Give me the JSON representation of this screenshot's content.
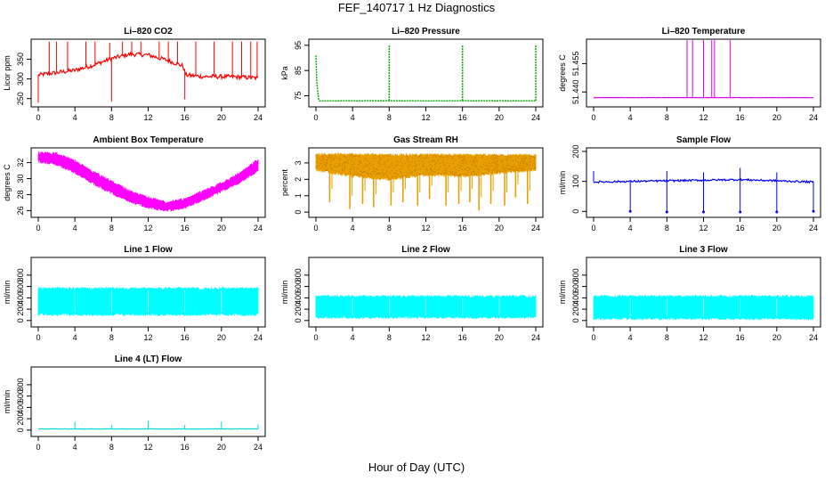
{
  "figure": {
    "title": "FEF_140717  1 Hz Diagnostics",
    "xlabel": "Hour of Day (UTC)"
  },
  "chart_data": [
    {
      "type": "line",
      "title": "Li–820 CO2",
      "ylabel": "Licor ppm",
      "color": "#ff0000",
      "xlim": [
        0,
        24
      ],
      "ylim": [
        238,
        392
      ],
      "yticks": [
        250,
        300,
        350
      ],
      "xticks": [
        0,
        4,
        8,
        12,
        16,
        20,
        24
      ],
      "baseline": [
        [
          0,
          310
        ],
        [
          2,
          316
        ],
        [
          4,
          322
        ],
        [
          6,
          335
        ],
        [
          8,
          352
        ],
        [
          10,
          363
        ],
        [
          12,
          361
        ],
        [
          14,
          348
        ],
        [
          15.8,
          333
        ],
        [
          16.1,
          310
        ],
        [
          18,
          306
        ],
        [
          20,
          306
        ],
        [
          22,
          305
        ],
        [
          24,
          302
        ]
      ],
      "spikes": [
        [
          0,
          240
        ],
        [
          1.2,
          395
        ],
        [
          2,
          395
        ],
        [
          3.2,
          395
        ],
        [
          5.2,
          395
        ],
        [
          6.2,
          395
        ],
        [
          7.8,
          392
        ],
        [
          8,
          242
        ],
        [
          9.2,
          395
        ],
        [
          10.2,
          395
        ],
        [
          11.2,
          395
        ],
        [
          13.2,
          395
        ],
        [
          14.2,
          395
        ],
        [
          15.2,
          395
        ],
        [
          16,
          248
        ],
        [
          17.2,
          395
        ],
        [
          19.2,
          395
        ],
        [
          21.2,
          395
        ],
        [
          22.2,
          395
        ],
        [
          23.2,
          395
        ],
        [
          23.9,
          395
        ]
      ]
    },
    {
      "type": "line",
      "title": "Li–820 Pressure",
      "ylabel": "kPa",
      "color": "#00aa00",
      "xlim": [
        0,
        24
      ],
      "ylim": [
        72,
        96
      ],
      "yticks": [
        75,
        85,
        95
      ],
      "xticks": [
        0,
        4,
        8,
        12,
        16,
        20,
        24
      ],
      "baseline": [
        [
          0,
          91
        ],
        [
          0.1,
          80
        ],
        [
          0.3,
          73
        ],
        [
          24,
          73
        ]
      ],
      "spikes": [
        [
          8,
          95
        ],
        [
          16,
          95
        ],
        [
          24,
          95
        ]
      ]
    },
    {
      "type": "line",
      "title": "Li–820 Temperature",
      "ylabel": "degrees C",
      "color": "#dd00dd",
      "xlim": [
        0,
        24
      ],
      "ylim": [
        51.434,
        51.466
      ],
      "yticks": [
        51.44,
        51.455
      ],
      "ytick_labels": [
        "51.440",
        "51.455"
      ],
      "xticks": [
        0,
        4,
        8,
        12,
        16,
        20,
        24
      ],
      "baseline": [
        [
          0,
          51.437
        ],
        [
          24,
          51.437
        ]
      ],
      "spikes": [
        [
          10.2,
          51.47
        ],
        [
          10.8,
          51.47
        ],
        [
          12,
          51.47
        ],
        [
          12.9,
          51.47
        ],
        [
          13.2,
          51.47
        ],
        [
          14.9,
          51.47
        ]
      ]
    },
    {
      "type": "band",
      "title": "Ambient Box Temperature",
      "ylabel": "degrees C",
      "color": "#ff00ff",
      "xlim": [
        0,
        24
      ],
      "ylim": [
        25.6,
        33.4
      ],
      "yticks": [
        26,
        28,
        30,
        32
      ],
      "xticks": [
        0,
        4,
        8,
        12,
        16,
        20,
        24
      ],
      "upper": [
        [
          0,
          33.2
        ],
        [
          2,
          33.1
        ],
        [
          4,
          32.2
        ],
        [
          6,
          30.8
        ],
        [
          8,
          29.6
        ],
        [
          10,
          28.4
        ],
        [
          12,
          27.6
        ],
        [
          14,
          27.0
        ],
        [
          16,
          27.4
        ],
        [
          18,
          28.4
        ],
        [
          20,
          29.4
        ],
        [
          22,
          30.6
        ],
        [
          24,
          32.4
        ]
      ],
      "lower": [
        [
          0,
          32.2
        ],
        [
          2,
          31.8
        ],
        [
          4,
          30.8
        ],
        [
          6,
          29.4
        ],
        [
          8,
          28.2
        ],
        [
          10,
          27.2
        ],
        [
          12,
          26.4
        ],
        [
          14,
          26.0
        ],
        [
          16,
          26.4
        ],
        [
          18,
          27.4
        ],
        [
          20,
          28.4
        ],
        [
          22,
          29.6
        ],
        [
          24,
          31.0
        ]
      ]
    },
    {
      "type": "band",
      "title": "Gas Stream RH",
      "ylabel": "percent",
      "color": "#e8a000",
      "xlim": [
        0,
        24
      ],
      "ylim": [
        -0.1,
        3.7
      ],
      "yticks": [
        0,
        1,
        2,
        3
      ],
      "xticks": [
        0,
        4,
        8,
        12,
        16,
        20,
        24
      ],
      "upper": [
        [
          0,
          3.5
        ],
        [
          24,
          3.45
        ]
      ],
      "lower": [
        [
          0,
          2.6
        ],
        [
          4,
          2.2
        ],
        [
          8,
          2.0
        ],
        [
          12,
          2.3
        ],
        [
          16,
          2.2
        ],
        [
          20,
          2.4
        ],
        [
          24,
          2.6
        ]
      ],
      "dips": [
        [
          1.5,
          0.6
        ],
        [
          3.7,
          0.2
        ],
        [
          5.1,
          0.5
        ],
        [
          6.3,
          0.3
        ],
        [
          8.2,
          0.4
        ],
        [
          9.5,
          0.6
        ],
        [
          11.1,
          0.4
        ],
        [
          12.4,
          0.8
        ],
        [
          14.2,
          0.4
        ],
        [
          15.6,
          0.5
        ],
        [
          16.8,
          0.6
        ],
        [
          17.8,
          0.1
        ],
        [
          19.1,
          0.5
        ],
        [
          20.6,
          0.4
        ],
        [
          21.8,
          0.9
        ],
        [
          23.1,
          0.5
        ]
      ]
    },
    {
      "type": "line",
      "title": "Sample Flow",
      "ylabel": "ml/min",
      "color": "#0000ff",
      "xlim": [
        0,
        24
      ],
      "ylim": [
        -8,
        200
      ],
      "yticks": [
        0,
        100,
        200
      ],
      "xticks": [
        0,
        4,
        8,
        12,
        16,
        20,
        24
      ],
      "baseline": [
        [
          0,
          98
        ],
        [
          4,
          100
        ],
        [
          8,
          102
        ],
        [
          12,
          104
        ],
        [
          16,
          106
        ],
        [
          20,
          102
        ],
        [
          24,
          98
        ]
      ],
      "spikes": [
        [
          0,
          135
        ],
        [
          4,
          0
        ],
        [
          8,
          135
        ],
        [
          8,
          -2
        ],
        [
          12,
          130
        ],
        [
          12,
          -2
        ],
        [
          16,
          145
        ],
        [
          16,
          -2
        ],
        [
          20,
          130
        ],
        [
          20,
          -2
        ],
        [
          24,
          0
        ]
      ]
    },
    {
      "type": "band",
      "title": "Line 1 Flow",
      "ylabel": "ml/min",
      "color": "#00ffff",
      "xlim": [
        0,
        24
      ],
      "ylim": [
        -50,
        1050
      ],
      "yticks": [
        0,
        200,
        400,
        600,
        800
      ],
      "xticks": [
        0,
        4,
        8,
        12,
        16,
        20,
        24
      ],
      "upper": [
        [
          0,
          560
        ],
        [
          24,
          560
        ]
      ],
      "lower": [
        [
          0,
          110
        ],
        [
          24,
          110
        ]
      ],
      "gaps": [
        4,
        8,
        12,
        16,
        20
      ]
    },
    {
      "type": "band",
      "title": "Line 2 Flow",
      "ylabel": "ml/min",
      "color": "#00ffff",
      "xlim": [
        0,
        24
      ],
      "ylim": [
        -50,
        1050
      ],
      "yticks": [
        0,
        200,
        400,
        600,
        800
      ],
      "xticks": [
        0,
        4,
        8,
        12,
        16,
        20,
        24
      ],
      "upper": [
        [
          0,
          420
        ],
        [
          24,
          420
        ]
      ],
      "lower": [
        [
          0,
          60
        ],
        [
          24,
          60
        ]
      ],
      "gaps": [
        4,
        8,
        12,
        16,
        20
      ]
    },
    {
      "type": "band",
      "title": "Line 3 Flow",
      "ylabel": "ml/min",
      "color": "#00ffff",
      "xlim": [
        0,
        24
      ],
      "ylim": [
        -50,
        1050
      ],
      "yticks": [
        0,
        200,
        400,
        600,
        800
      ],
      "xticks": [
        0,
        4,
        8,
        12,
        16,
        20,
        24
      ],
      "upper": [
        [
          0,
          420
        ],
        [
          24,
          420
        ]
      ],
      "lower": [
        [
          0,
          40
        ],
        [
          24,
          40
        ]
      ],
      "gaps": [
        4,
        8,
        12,
        16,
        20
      ]
    },
    {
      "type": "line",
      "title": "Line 4 (LT) Flow",
      "ylabel": "ml/min",
      "color": "#00dddd",
      "xlim": [
        0,
        24
      ],
      "ylim": [
        -50,
        1050
      ],
      "yticks": [
        0,
        200,
        400,
        600,
        800
      ],
      "xticks": [
        0,
        4,
        8,
        12,
        16,
        20,
        24
      ],
      "baseline": [
        [
          0,
          20
        ],
        [
          24,
          20
        ]
      ],
      "spikes": [
        [
          4,
          150
        ],
        [
          8,
          90
        ],
        [
          12,
          160
        ],
        [
          16,
          90
        ],
        [
          20,
          150
        ],
        [
          24,
          100
        ]
      ]
    }
  ]
}
